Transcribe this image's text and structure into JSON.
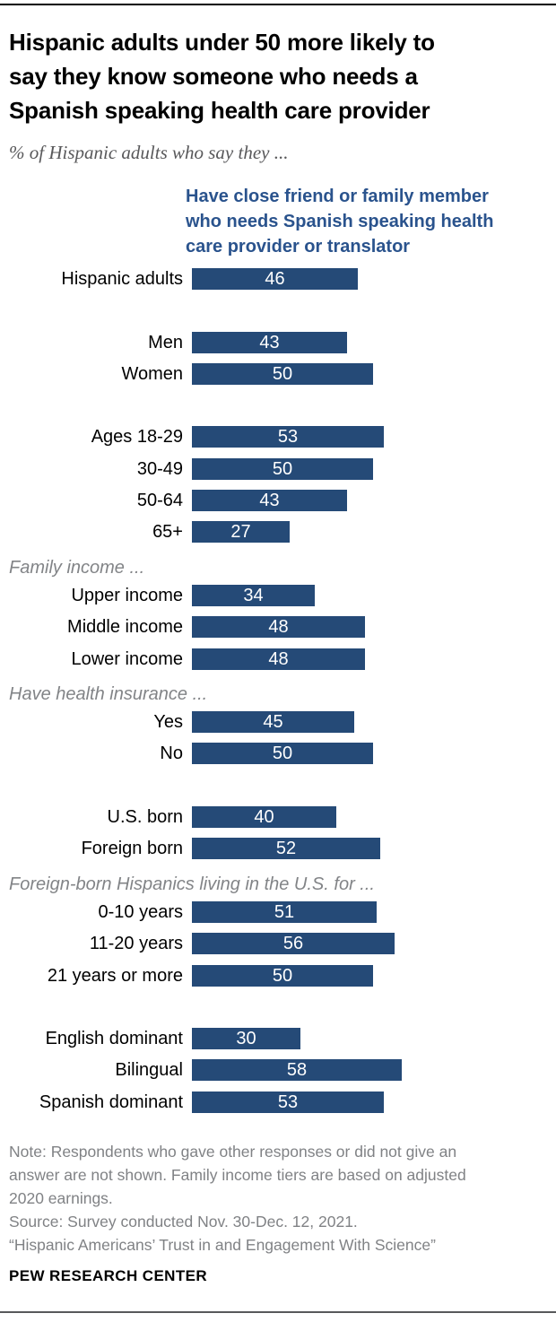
{
  "colors": {
    "bar": "#254A77",
    "bar_value_text": "#FFFFFF",
    "series_label": "#2A538D",
    "title": "#000000",
    "subtitle": "#58585A",
    "section_header": "#828487",
    "note": "#808285",
    "rule_top": "#000000",
    "rule_bottom": "#58595B"
  },
  "chart_data": {
    "type": "bar",
    "title": "Hispanic adults under 50 more likely to say they know someone who needs a Spanish speaking health care provider",
    "title_lines": [
      "Hispanic adults under 50 more likely to",
      "say they know someone who needs a",
      "Spanish speaking health care provider"
    ],
    "subtitle": "% of Hispanic adults who say they ...",
    "series_label": "Have close friend or family member who needs Spanish speaking health care provider or translator",
    "series_label_lines": [
      "Have close friend or family member",
      "who needs Spanish speaking health",
      "care provider or translator"
    ],
    "value_unit": "%",
    "xlim": [
      0,
      60
    ],
    "categories": [
      "Hispanic adults",
      "Men",
      "Women",
      "Ages 18-29",
      "30-49",
      "50-64",
      "65+",
      "Upper income",
      "Middle income",
      "Lower income",
      "Yes",
      "No",
      "U.S. born",
      "Foreign born",
      "0-10 years",
      "11-20 years",
      "21 years or more",
      "English dominant",
      "Bilingual",
      "Spanish dominant"
    ],
    "values": [
      46,
      43,
      50,
      53,
      50,
      43,
      27,
      34,
      48,
      48,
      45,
      50,
      40,
      52,
      51,
      56,
      50,
      30,
      58,
      53
    ],
    "rows": [
      {
        "kind": "bar",
        "label": "Hispanic adults",
        "value": 46
      },
      {
        "kind": "gap"
      },
      {
        "kind": "bar",
        "label": "Men",
        "value": 43
      },
      {
        "kind": "bar",
        "label": "Women",
        "value": 50
      },
      {
        "kind": "gap"
      },
      {
        "kind": "bar",
        "label": "Ages 18-29",
        "value": 53
      },
      {
        "kind": "bar",
        "label": "30-49",
        "value": 50
      },
      {
        "kind": "bar",
        "label": "50-64",
        "value": 43
      },
      {
        "kind": "bar",
        "label": "65+",
        "value": 27
      },
      {
        "kind": "section",
        "label": "Family income ..."
      },
      {
        "kind": "bar",
        "label": "Upper income",
        "value": 34
      },
      {
        "kind": "bar",
        "label": "Middle income",
        "value": 48
      },
      {
        "kind": "bar",
        "label": "Lower income",
        "value": 48
      },
      {
        "kind": "section",
        "label": "Have health insurance ..."
      },
      {
        "kind": "bar",
        "label": "Yes",
        "value": 45
      },
      {
        "kind": "bar",
        "label": "No",
        "value": 50
      },
      {
        "kind": "gap"
      },
      {
        "kind": "bar",
        "label": "U.S. born",
        "value": 40
      },
      {
        "kind": "bar",
        "label": "Foreign born",
        "value": 52
      },
      {
        "kind": "section",
        "label": "Foreign-born Hispanics living in the U.S. for ..."
      },
      {
        "kind": "bar",
        "label": "0-10 years",
        "value": 51
      },
      {
        "kind": "bar",
        "label": "11-20 years",
        "value": 56
      },
      {
        "kind": "bar",
        "label": "21 years or more",
        "value": 50
      },
      {
        "kind": "gap"
      },
      {
        "kind": "bar",
        "label": "English dominant",
        "value": 30
      },
      {
        "kind": "bar",
        "label": "Bilingual",
        "value": 58
      },
      {
        "kind": "bar",
        "label": "Spanish dominant",
        "value": 53
      }
    ]
  },
  "footer": {
    "note_lines": [
      "Note: Respondents who gave other responses or did not give an",
      "answer are not shown. Family income tiers are based on adjusted",
      "2020 earnings."
    ],
    "source": "Source: Survey conducted Nov. 30-Dec. 12, 2021.",
    "quote": "“Hispanic Americans’ Trust in and Engagement With Science”",
    "brand": "PEW RESEARCH CENTER"
  }
}
